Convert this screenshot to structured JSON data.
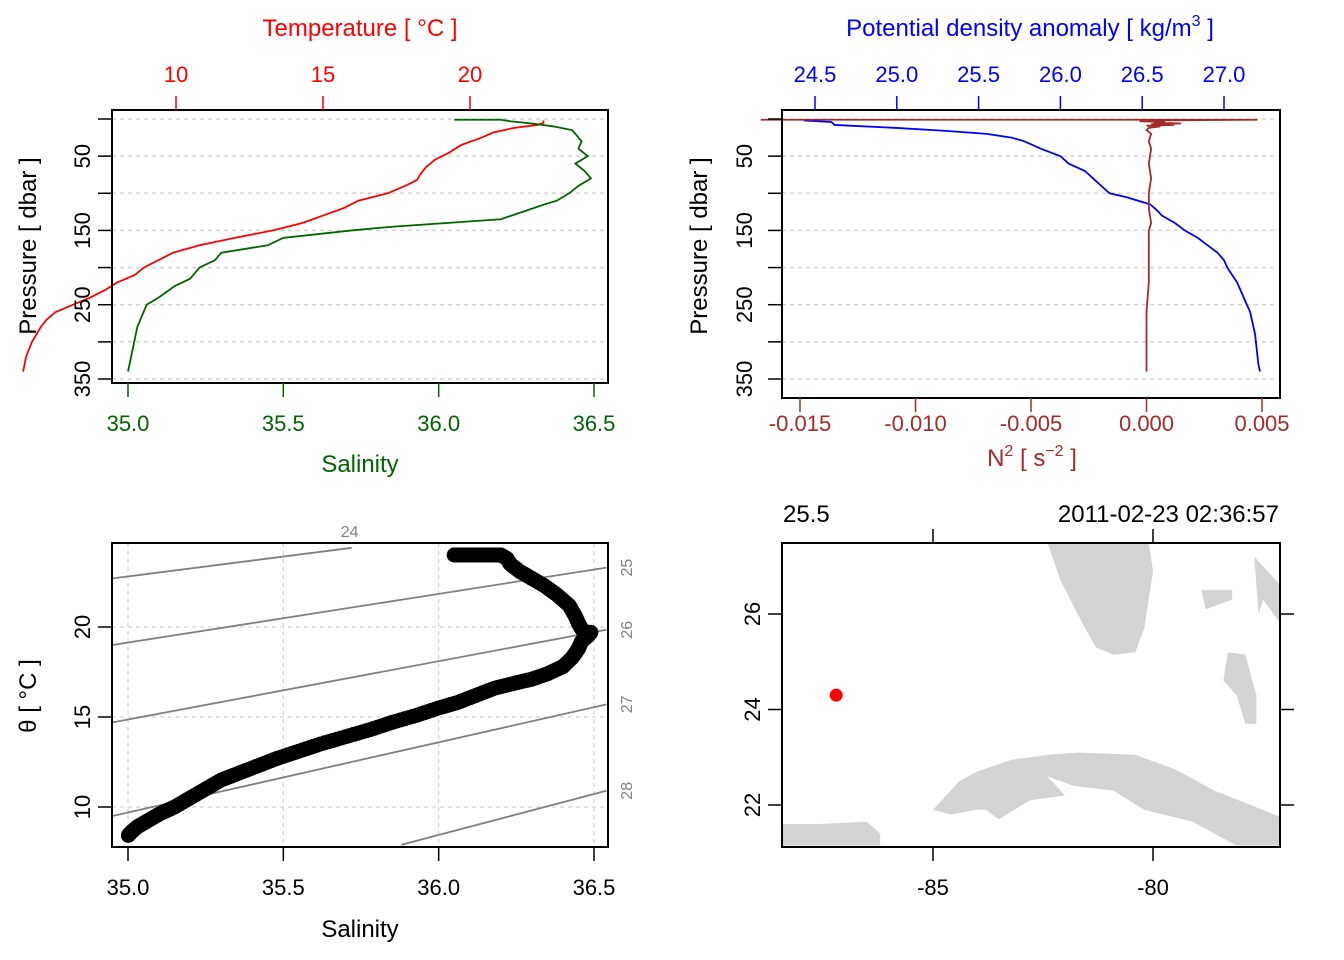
{
  "colors": {
    "temperature": "#ff0000",
    "salinity": "#006400",
    "density": "#0000ff",
    "n2": "#a52a2a",
    "isopycnal": "#808080",
    "land": "#d3d3d3",
    "station": "#ff0000",
    "grid": "#d3d3d3",
    "ts_points": "#000000"
  },
  "chart_data": [
    {
      "id": "panel-ts-profile",
      "type": "line",
      "title": "",
      "top_axis_label": "Temperature [ °C ]",
      "bottom_axis_label": "Salinity",
      "ylabel": "Pressure [ dbar ]",
      "top_ticks": [
        "10",
        "15",
        "20"
      ],
      "top_tick_values": [
        10,
        15,
        20
      ],
      "bottom_ticks": [
        "35.0",
        "35.5",
        "36.0",
        "36.5"
      ],
      "bottom_tick_values": [
        35.0,
        35.5,
        36.0,
        36.5
      ],
      "y_ticks": [
        "50",
        "150",
        "250",
        "350"
      ],
      "y_tick_values": [
        50,
        150,
        250,
        350
      ],
      "y_grid_values": [
        0,
        50,
        100,
        150,
        200,
        250,
        300,
        350
      ],
      "ylim": [
        355,
        -12
      ],
      "salinity_lim": [
        34.95,
        36.54
      ],
      "temperature_lim": [
        4.8,
        21.7
      ],
      "grid": true,
      "series": [
        {
          "name": "Temperature",
          "axis": "top",
          "pressure": [
            2,
            5,
            8,
            12,
            18,
            25,
            35,
            45,
            55,
            65,
            75,
            82,
            90,
            100,
            110,
            120,
            130,
            140,
            150,
            160,
            170,
            180,
            190,
            200,
            210,
            220,
            230,
            240,
            250,
            260,
            270,
            280,
            300,
            320,
            340
          ],
          "values": [
            22.5,
            22.5,
            22.3,
            21.5,
            20.8,
            20.4,
            19.7,
            19.3,
            18.8,
            18.5,
            18.3,
            18.2,
            17.8,
            17.2,
            16.2,
            15.7,
            15.0,
            14.3,
            13.3,
            12.0,
            10.8,
            9.9,
            9.4,
            8.9,
            8.6,
            8.0,
            7.6,
            7.1,
            6.5,
            5.9,
            5.6,
            5.4,
            5.1,
            4.9,
            4.8
          ]
        },
        {
          "name": "Salinity",
          "axis": "bottom",
          "pressure": [
            1,
            1,
            3,
            6,
            10,
            15,
            20,
            30,
            40,
            50,
            60,
            70,
            80,
            90,
            100,
            110,
            115,
            125,
            135,
            145,
            150,
            160,
            170,
            180,
            190,
            200,
            205,
            215,
            225,
            240,
            250,
            260,
            270,
            280,
            300,
            320,
            340
          ],
          "values": [
            36.05,
            36.2,
            36.23,
            36.3,
            36.37,
            36.43,
            36.44,
            36.46,
            36.45,
            36.48,
            36.44,
            36.47,
            36.49,
            36.45,
            36.42,
            36.38,
            36.34,
            36.27,
            36.2,
            35.85,
            35.72,
            35.5,
            35.45,
            35.3,
            35.28,
            35.23,
            35.22,
            35.2,
            35.15,
            35.1,
            35.06,
            35.05,
            35.04,
            35.03,
            35.02,
            35.01,
            35.0
          ]
        }
      ]
    },
    {
      "id": "panel-density-n2",
      "type": "line",
      "title": "",
      "top_axis_label": "Potential density anomaly [ kg/m",
      "top_axis_label_sup": "3",
      "top_axis_label_end": " ]",
      "bottom_axis_label": "N",
      "bottom_axis_label_sup": "2",
      "bottom_axis_label_mid": " [ s",
      "bottom_axis_label_sup2": "−2",
      "bottom_axis_label_end": " ]",
      "ylabel": "Pressure [ dbar ]",
      "top_ticks": [
        "24.5",
        "25.0",
        "25.5",
        "26.0",
        "26.5",
        "27.0"
      ],
      "top_tick_values": [
        24.5,
        25.0,
        25.5,
        26.0,
        26.5,
        27.0
      ],
      "bottom_ticks": [
        "-0.015",
        "-0.010",
        "-0.005",
        "0.000",
        "0.005"
      ],
      "bottom_tick_values": [
        -0.015,
        -0.01,
        -0.005,
        0.0,
        0.005
      ],
      "y_ticks": [
        "50",
        "150",
        "250",
        "350"
      ],
      "y_tick_values": [
        50,
        150,
        250,
        350
      ],
      "y_grid_values": [
        0,
        50,
        100,
        150,
        200,
        250,
        300,
        350
      ],
      "ylim": [
        355,
        -12
      ],
      "density_lim": [
        24.4,
        27.35
      ],
      "n2_lim": [
        -0.0172,
        0.0053
      ],
      "grid": true,
      "series": [
        {
          "name": "Potential density anomaly",
          "axis": "top",
          "pressure": [
            2,
            4,
            8,
            12,
            16,
            20,
            25,
            30,
            40,
            50,
            60,
            70,
            80,
            90,
            100,
            105,
            115,
            125,
            130,
            140,
            150,
            160,
            170,
            180,
            190,
            200,
            210,
            220,
            230,
            240,
            250,
            260,
            270,
            290,
            310,
            330,
            340
          ],
          "values": [
            24.43,
            24.6,
            24.62,
            25.0,
            25.3,
            25.55,
            25.7,
            25.78,
            25.88,
            26.0,
            26.05,
            26.15,
            26.2,
            26.25,
            26.3,
            26.4,
            26.55,
            26.6,
            26.62,
            26.7,
            26.76,
            26.84,
            26.9,
            26.96,
            27.0,
            27.02,
            27.05,
            27.08,
            27.1,
            27.12,
            27.14,
            27.16,
            27.17,
            27.19,
            27.2,
            27.21,
            27.22
          ]
        },
        {
          "name": "N2",
          "axis": "bottom",
          "pressure": [
            1,
            1,
            2,
            3,
            4,
            5,
            6,
            7,
            8,
            9,
            10,
            12,
            15,
            20,
            30,
            40,
            60,
            80,
            100,
            120,
            140,
            150,
            180,
            220,
            260,
            300,
            340
          ],
          "values": [
            -0.0167,
            0.0048,
            0.0,
            -0.0003,
            0.0008,
            0.0003,
            0.0015,
            0.0002,
            0.0012,
            0.0,
            0.0006,
            0.0001,
            0.0,
            0.0002,
            0.0001,
            0.0002,
            0.0001,
            0.0002,
            0.0001,
            0.0001,
            0.0002,
            0.0001,
            0.0001,
            0.0001,
            0.0,
            0.0,
            0.0
          ]
        }
      ]
    },
    {
      "id": "panel-ts-diagram",
      "type": "scatter",
      "title": "",
      "xlabel": "Salinity",
      "ylabel": "θ [ °C ]",
      "x_ticks": [
        "35.0",
        "35.5",
        "36.0",
        "36.5"
      ],
      "x_tick_values": [
        35.0,
        35.5,
        36.0,
        36.5
      ],
      "y_ticks": [
        "10",
        "15",
        "20"
      ],
      "y_tick_values": [
        10,
        15,
        20
      ],
      "xlim": [
        34.95,
        36.54
      ],
      "ylim": [
        7.9,
        24.4
      ],
      "grid": true,
      "isopycnal_labels": [
        "24",
        "25",
        "26",
        "27",
        "28"
      ],
      "isopycnals": [
        {
          "sigma": 24,
          "label_position": "top",
          "s0": 34.95,
          "t0": 22.7,
          "s1": 35.72,
          "t1": 24.4
        },
        {
          "sigma": 25,
          "label_position": "right",
          "s0": 34.95,
          "t0": 19.0,
          "s1": 36.54,
          "t1": 23.3
        },
        {
          "sigma": 26,
          "label_position": "right",
          "s0": 34.95,
          "t0": 14.7,
          "s1": 36.54,
          "t1": 19.85
        },
        {
          "sigma": 27,
          "label_position": "right",
          "s0": 34.95,
          "t0": 9.5,
          "s1": 36.54,
          "t1": 15.7
        },
        {
          "sigma": 28,
          "label_position": "right",
          "s0": 35.88,
          "t0": 7.9,
          "s1": 36.54,
          "t1": 10.9
        }
      ],
      "points": {
        "salinity": [
          36.05,
          36.08,
          36.11,
          36.14,
          36.17,
          36.2,
          36.22,
          36.23,
          36.26,
          36.3,
          36.34,
          36.38,
          36.42,
          36.44,
          36.45,
          36.46,
          36.47,
          36.49,
          36.48,
          36.46,
          36.45,
          36.43,
          36.4,
          36.35,
          36.3,
          36.25,
          36.18,
          36.12,
          36.06,
          36.0,
          35.93,
          35.85,
          35.78,
          35.7,
          35.62,
          35.55,
          35.48,
          35.42,
          35.36,
          35.3,
          35.25,
          35.2,
          35.15,
          35.1,
          35.06,
          35.03,
          35.01,
          35.0
        ],
        "theta": [
          24.0,
          24.0,
          24.0,
          24.0,
          24.0,
          24.0,
          23.8,
          23.5,
          23.1,
          22.7,
          22.3,
          21.8,
          21.2,
          20.6,
          20.2,
          19.9,
          19.7,
          19.7,
          19.5,
          19.2,
          18.8,
          18.3,
          17.8,
          17.4,
          17.1,
          16.9,
          16.6,
          16.2,
          15.8,
          15.5,
          15.1,
          14.7,
          14.3,
          13.9,
          13.5,
          13.1,
          12.7,
          12.3,
          11.9,
          11.5,
          11.0,
          10.5,
          10.0,
          9.6,
          9.2,
          8.9,
          8.6,
          8.4
        ]
      }
    },
    {
      "id": "panel-map",
      "type": "map",
      "title": "",
      "top_left_label": "25.5",
      "top_right_label": "2011-02-23 02:36:57",
      "x_ticks": [
        "-85",
        "-80"
      ],
      "x_tick_values": [
        -85,
        -80
      ],
      "y_ticks": [
        "22",
        "24",
        "26"
      ],
      "y_tick_values": [
        22,
        24,
        26
      ],
      "xlim": [
        -88.45,
        -77.1
      ],
      "ylim": [
        21.15,
        27.5
      ],
      "station": {
        "lon": -87.2,
        "lat": 24.3
      },
      "land": [
        {
          "name": "Florida",
          "lon": [
            -82.4,
            -80.1,
            -80.0,
            -80.2,
            -80.4,
            -80.9,
            -81.3,
            -81.6,
            -82.1
          ],
          "lat": [
            27.5,
            27.5,
            26.9,
            25.7,
            25.2,
            25.15,
            25.3,
            25.8,
            26.7
          ]
        },
        {
          "name": "Bahamas-north",
          "lon": [
            -78.9,
            -78.8,
            -78.2,
            -78.2
          ],
          "lat": [
            26.5,
            26.1,
            26.3,
            26.5
          ]
        },
        {
          "name": "Bahamas-east",
          "lon": [
            -77.7,
            -77.1,
            -77.1,
            -77.5,
            -77.6
          ],
          "lat": [
            27.2,
            26.6,
            25.8,
            26.3,
            26.0
          ]
        },
        {
          "name": "Andros",
          "lon": [
            -78.3,
            -77.9,
            -77.65,
            -77.65,
            -77.9,
            -78.1,
            -78.4
          ],
          "lat": [
            25.2,
            25.15,
            24.3,
            23.7,
            23.7,
            24.3,
            24.6
          ]
        },
        {
          "name": "Cuba",
          "lon": [
            -85.0,
            -84.4,
            -84.0,
            -83.2,
            -82.4,
            -81.7,
            -80.4,
            -79.5,
            -78.6,
            -77.1,
            -77.1,
            -78.1,
            -79.1,
            -80.2,
            -80.9,
            -81.8,
            -82.4,
            -82.0,
            -82.8,
            -83.5,
            -83.8,
            -84.0,
            -84.6
          ],
          "lat": [
            21.9,
            22.5,
            22.7,
            22.95,
            23.05,
            23.1,
            23.05,
            22.75,
            22.3,
            21.75,
            21.15,
            21.15,
            21.65,
            21.9,
            22.3,
            22.4,
            22.6,
            22.2,
            22.1,
            21.7,
            21.9,
            21.9,
            21.8
          ]
        },
        {
          "name": "Yucatan",
          "lon": [
            -88.45,
            -87.6,
            -86.5,
            -86.2,
            -86.2,
            -88.45
          ],
          "lat": [
            21.6,
            21.6,
            21.65,
            21.4,
            21.15,
            21.15
          ]
        }
      ]
    }
  ]
}
